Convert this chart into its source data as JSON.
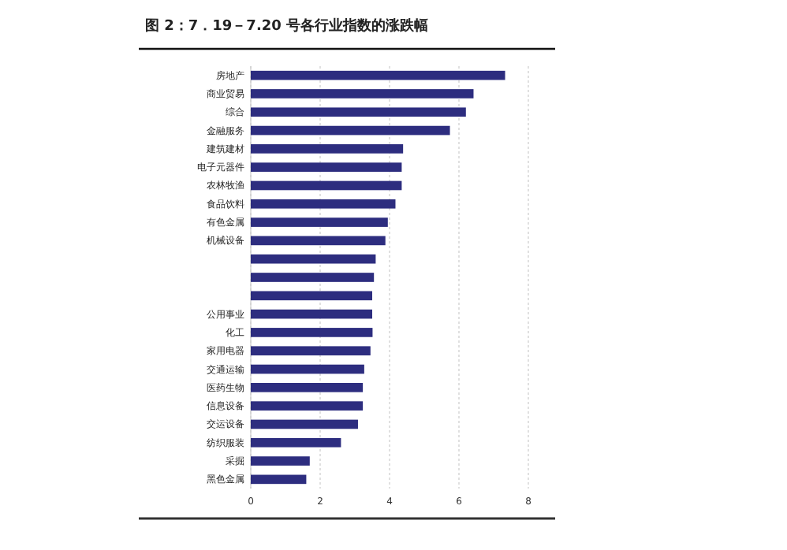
{
  "chart_data": {
    "type": "bar",
    "orientation": "horizontal",
    "title": "图 2：7．19－7.20 号各行业指数的涨跌幅",
    "categories": [
      "房地产",
      "商业贸易",
      "综合",
      "金融服务",
      "建筑建材",
      "电子元器件",
      "农林牧渔",
      "食品饮料",
      "有色金属",
      "机械设备",
      null,
      null,
      null,
      "公用事业",
      "化工",
      "家用电器",
      "交通运输",
      "医药生物",
      "信息设备",
      "交运设备",
      "纺织服装",
      "采掘",
      "黑色金属"
    ],
    "values": [
      7.33,
      6.42,
      6.2,
      5.74,
      4.39,
      4.35,
      4.35,
      4.17,
      3.95,
      3.88,
      3.6,
      3.55,
      3.5,
      3.5,
      3.51,
      3.45,
      3.27,
      3.23,
      3.23,
      3.09,
      2.6,
      1.7,
      1.6
    ],
    "color": "#2d2d7f",
    "xlim": [
      0,
      8
    ],
    "xticks": [
      0,
      2,
      4,
      6,
      8
    ],
    "grid": "x"
  }
}
